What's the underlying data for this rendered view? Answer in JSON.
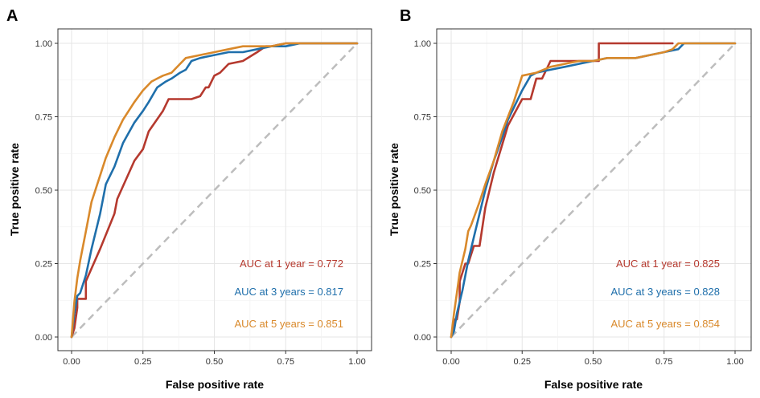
{
  "colors": {
    "year1": "#b5392e",
    "year3": "#1f6fab",
    "year5": "#d9892b",
    "diagonal": "#bdbdbd"
  },
  "chart_data": [
    {
      "type": "line",
      "panel": "A",
      "xlabel": "False positive rate",
      "ylabel": "True positive rate",
      "xlim": [
        0,
        1
      ],
      "ylim": [
        0,
        1
      ],
      "xticks": [
        "0.00",
        "0.25",
        "0.50",
        "0.75",
        "1.00"
      ],
      "yticks": [
        "0.00",
        "0.25",
        "0.50",
        "0.75",
        "1.00"
      ],
      "grid": true,
      "reference_line": {
        "x": [
          0,
          1
        ],
        "y": [
          0,
          1
        ],
        "style": "dashed"
      },
      "series": [
        {
          "name": "AUC at 1 year",
          "color_key": "year1",
          "label": "AUC at 1 year = 0.772",
          "x": [
            0.0,
            0.01,
            0.02,
            0.02,
            0.05,
            0.05,
            0.1,
            0.15,
            0.16,
            0.22,
            0.25,
            0.27,
            0.32,
            0.34,
            0.38,
            0.42,
            0.45,
            0.47,
            0.48,
            0.5,
            0.52,
            0.55,
            0.6,
            0.65,
            0.68,
            0.7,
            0.75,
            0.8,
            0.9,
            1.0
          ],
          "y": [
            0.0,
            0.03,
            0.1,
            0.13,
            0.13,
            0.19,
            0.3,
            0.42,
            0.47,
            0.6,
            0.64,
            0.7,
            0.77,
            0.81,
            0.81,
            0.81,
            0.82,
            0.85,
            0.85,
            0.89,
            0.9,
            0.93,
            0.94,
            0.97,
            0.99,
            0.99,
            1.0,
            1.0,
            1.0,
            1.0
          ]
        },
        {
          "name": "AUC at 3 years",
          "color_key": "year3",
          "label": "AUC at 3 years = 0.817",
          "x": [
            0.0,
            0.01,
            0.02,
            0.03,
            0.05,
            0.07,
            0.1,
            0.12,
            0.15,
            0.18,
            0.22,
            0.25,
            0.27,
            0.3,
            0.33,
            0.35,
            0.38,
            0.4,
            0.42,
            0.45,
            0.5,
            0.55,
            0.6,
            0.65,
            0.7,
            0.75,
            0.8,
            0.9,
            1.0
          ],
          "y": [
            0.0,
            0.08,
            0.14,
            0.15,
            0.21,
            0.3,
            0.42,
            0.52,
            0.58,
            0.66,
            0.73,
            0.77,
            0.8,
            0.85,
            0.87,
            0.88,
            0.9,
            0.91,
            0.94,
            0.95,
            0.96,
            0.97,
            0.97,
            0.98,
            0.99,
            0.99,
            1.0,
            1.0,
            1.0
          ]
        },
        {
          "name": "AUC at 5 years",
          "color_key": "year5",
          "label": "AUC at 5 years = 0.851",
          "x": [
            0.0,
            0.01,
            0.02,
            0.03,
            0.05,
            0.07,
            0.1,
            0.12,
            0.15,
            0.18,
            0.2,
            0.22,
            0.25,
            0.28,
            0.3,
            0.32,
            0.35,
            0.38,
            0.4,
            0.45,
            0.5,
            0.55,
            0.6,
            0.65,
            0.7,
            0.75,
            0.8,
            0.9,
            1.0
          ],
          "y": [
            0.0,
            0.12,
            0.2,
            0.26,
            0.36,
            0.46,
            0.55,
            0.61,
            0.68,
            0.74,
            0.77,
            0.8,
            0.84,
            0.87,
            0.88,
            0.89,
            0.9,
            0.93,
            0.95,
            0.96,
            0.97,
            0.98,
            0.99,
            0.99,
            0.99,
            1.0,
            1.0,
            1.0,
            1.0
          ]
        }
      ]
    },
    {
      "type": "line",
      "panel": "B",
      "xlabel": "False positive rate",
      "ylabel": "True positive rate",
      "xlim": [
        0,
        1
      ],
      "ylim": [
        0,
        1
      ],
      "xticks": [
        "0.00",
        "0.25",
        "0.50",
        "0.75",
        "1.00"
      ],
      "yticks": [
        "0.00",
        "0.25",
        "0.50",
        "0.75",
        "1.00"
      ],
      "grid": true,
      "reference_line": {
        "x": [
          0,
          1
        ],
        "y": [
          0,
          1
        ],
        "style": "dashed"
      },
      "series": [
        {
          "name": "AUC at 1 year",
          "color_key": "year1",
          "label": "AUC at 1 year = 0.825",
          "x": [
            0.0,
            0.01,
            0.02,
            0.03,
            0.03,
            0.05,
            0.06,
            0.08,
            0.08,
            0.1,
            0.12,
            0.15,
            0.2,
            0.25,
            0.28,
            0.3,
            0.32,
            0.35,
            0.4,
            0.45,
            0.5,
            0.52,
            0.52,
            0.6,
            0.7,
            0.78
          ],
          "y": [
            0.0,
            0.06,
            0.06,
            0.12,
            0.19,
            0.25,
            0.25,
            0.31,
            0.31,
            0.31,
            0.44,
            0.56,
            0.72,
            0.81,
            0.81,
            0.88,
            0.88,
            0.94,
            0.94,
            0.94,
            0.94,
            0.94,
            1.0,
            1.0,
            1.0,
            1.0
          ]
        },
        {
          "name": "AUC at 3 years",
          "color_key": "year3",
          "label": "AUC at 3 years = 0.828",
          "x": [
            0.0,
            0.01,
            0.02,
            0.04,
            0.06,
            0.08,
            0.1,
            0.12,
            0.15,
            0.18,
            0.2,
            0.22,
            0.25,
            0.28,
            0.3,
            0.35,
            0.4,
            0.45,
            0.5,
            0.55,
            0.6,
            0.65,
            0.7,
            0.75,
            0.8,
            0.82,
            0.9,
            1.0
          ],
          "y": [
            0.0,
            0.02,
            0.08,
            0.16,
            0.26,
            0.34,
            0.42,
            0.5,
            0.6,
            0.68,
            0.74,
            0.78,
            0.84,
            0.89,
            0.9,
            0.91,
            0.92,
            0.93,
            0.94,
            0.95,
            0.95,
            0.95,
            0.96,
            0.97,
            0.98,
            1.0,
            1.0,
            1.0
          ]
        },
        {
          "name": "AUC at 5 years",
          "color_key": "year5",
          "label": "AUC at 5 years = 0.854",
          "x": [
            0.0,
            0.01,
            0.02,
            0.03,
            0.05,
            0.06,
            0.07,
            0.1,
            0.12,
            0.15,
            0.18,
            0.22,
            0.25,
            0.3,
            0.35,
            0.4,
            0.45,
            0.5,
            0.55,
            0.6,
            0.65,
            0.7,
            0.75,
            0.78,
            0.8,
            0.9,
            1.0
          ],
          "y": [
            0.0,
            0.08,
            0.15,
            0.22,
            0.3,
            0.36,
            0.38,
            0.46,
            0.52,
            0.6,
            0.7,
            0.8,
            0.89,
            0.9,
            0.92,
            0.93,
            0.94,
            0.94,
            0.95,
            0.95,
            0.95,
            0.96,
            0.97,
            0.98,
            1.0,
            1.0,
            1.0
          ]
        }
      ]
    }
  ]
}
